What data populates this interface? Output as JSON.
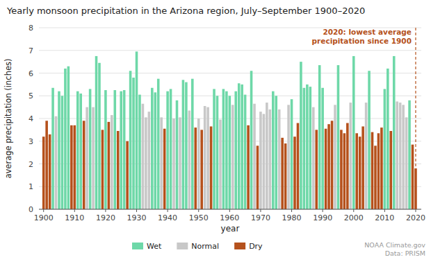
{
  "chart_data": {
    "type": "bar",
    "title": "Yearly monsoon precipitation in the Arizona region, July–September 1900–2020",
    "xlabel": "year",
    "ylabel": "average precipitation (inches)",
    "x": [
      1900,
      1901,
      1902,
      1903,
      1904,
      1905,
      1906,
      1907,
      1908,
      1909,
      1910,
      1911,
      1912,
      1913,
      1914,
      1915,
      1916,
      1917,
      1918,
      1919,
      1920,
      1921,
      1922,
      1923,
      1924,
      1925,
      1926,
      1927,
      1928,
      1929,
      1930,
      1931,
      1932,
      1933,
      1934,
      1935,
      1936,
      1937,
      1938,
      1939,
      1940,
      1941,
      1942,
      1943,
      1944,
      1945,
      1946,
      1947,
      1948,
      1949,
      1950,
      1951,
      1952,
      1953,
      1954,
      1955,
      1956,
      1957,
      1958,
      1959,
      1960,
      1961,
      1962,
      1963,
      1964,
      1965,
      1966,
      1967,
      1968,
      1969,
      1970,
      1971,
      1972,
      1973,
      1974,
      1975,
      1976,
      1977,
      1978,
      1979,
      1980,
      1981,
      1982,
      1983,
      1984,
      1985,
      1986,
      1987,
      1988,
      1989,
      1990,
      1991,
      1992,
      1993,
      1994,
      1995,
      1996,
      1997,
      1998,
      1999,
      2000,
      2001,
      2002,
      2003,
      2004,
      2005,
      2006,
      2007,
      2008,
      2009,
      2010,
      2011,
      2012,
      2013,
      2014,
      2015,
      2016,
      2017,
      2018,
      2019,
      2020
    ],
    "series": [
      {
        "name": "Wet",
        "color": "#6ed8a8",
        "values": [
          null,
          null,
          null,
          5.35,
          null,
          5.2,
          5.0,
          6.2,
          6.3,
          null,
          null,
          5.2,
          5.1,
          null,
          null,
          5.3,
          null,
          6.75,
          6.45,
          null,
          5.25,
          null,
          null,
          5.25,
          null,
          5.2,
          5.25,
          null,
          6.1,
          5.8,
          6.95,
          5.05,
          null,
          null,
          null,
          5.35,
          5.15,
          5.75,
          null,
          null,
          5.2,
          5.3,
          null,
          4.8,
          null,
          5.7,
          5.6,
          null,
          5.75,
          null,
          null,
          null,
          null,
          null,
          null,
          5.3,
          5.0,
          null,
          5.3,
          5.2,
          5.0,
          null,
          5.2,
          5.55,
          5.5,
          5.05,
          null,
          6.1,
          null,
          null,
          null,
          null,
          null,
          null,
          5.2,
          5.0,
          null,
          null,
          null,
          null,
          4.85,
          null,
          null,
          6.5,
          5.35,
          5.5,
          5.4,
          null,
          null,
          6.35,
          5.35,
          null,
          null,
          null,
          null,
          6.35,
          null,
          null,
          null,
          null,
          6.75,
          null,
          null,
          null,
          null,
          6.1,
          null,
          null,
          null,
          null,
          5.3,
          6.2,
          null,
          6.75,
          null,
          null,
          null,
          null,
          4.8,
          null,
          null
        ]
      },
      {
        "name": "Normal",
        "color": "#c8c8c8",
        "values": [
          null,
          null,
          null,
          null,
          4.1,
          null,
          null,
          null,
          null,
          null,
          null,
          null,
          null,
          null,
          4.5,
          null,
          4.5,
          null,
          null,
          null,
          null,
          null,
          4.15,
          null,
          null,
          null,
          null,
          null,
          null,
          null,
          null,
          null,
          4.65,
          4.05,
          4.3,
          null,
          null,
          null,
          4.05,
          null,
          null,
          null,
          4.0,
          null,
          4.05,
          null,
          null,
          4.35,
          null,
          null,
          4.0,
          null,
          4.55,
          4.5,
          null,
          null,
          null,
          3.95,
          null,
          null,
          null,
          4.6,
          null,
          null,
          null,
          null,
          null,
          null,
          4.65,
          null,
          4.3,
          4.2,
          4.7,
          4.4,
          null,
          null,
          4.4,
          null,
          null,
          4.6,
          null,
          null,
          null,
          null,
          null,
          null,
          null,
          4.5,
          null,
          null,
          null,
          null,
          null,
          null,
          4.6,
          null,
          null,
          null,
          null,
          4.7,
          null,
          null,
          null,
          null,
          4.7,
          null,
          null,
          null,
          null,
          null,
          null,
          null,
          null,
          null,
          4.75,
          4.7,
          4.6,
          4.05,
          null,
          null,
          null
        ]
      },
      {
        "name": "Dry",
        "color": "#b5511c",
        "values": [
          3.2,
          3.9,
          3.3,
          null,
          null,
          null,
          null,
          null,
          null,
          3.7,
          3.7,
          null,
          null,
          3.9,
          null,
          null,
          null,
          null,
          null,
          3.5,
          null,
          3.85,
          null,
          null,
          3.45,
          null,
          null,
          3.0,
          null,
          null,
          null,
          null,
          null,
          null,
          null,
          null,
          null,
          null,
          null,
          3.55,
          null,
          null,
          null,
          null,
          null,
          null,
          null,
          null,
          null,
          3.6,
          null,
          3.5,
          null,
          null,
          3.65,
          null,
          null,
          null,
          null,
          null,
          null,
          null,
          null,
          null,
          null,
          null,
          3.7,
          null,
          null,
          2.8,
          null,
          null,
          null,
          null,
          null,
          null,
          null,
          3.15,
          2.9,
          null,
          null,
          3.2,
          3.8,
          null,
          null,
          null,
          null,
          null,
          3.5,
          null,
          null,
          3.55,
          3.75,
          3.9,
          null,
          null,
          3.5,
          3.35,
          3.8,
          null,
          null,
          3.35,
          3.2,
          3.65,
          null,
          null,
          3.4,
          2.8,
          3.35,
          3.6,
          null,
          null,
          3.45,
          null,
          null,
          null,
          null,
          null,
          null,
          2.85,
          1.8
        ]
      }
    ],
    "xlim": [
      1898.5,
      2021.8
    ],
    "xticks": [
      1900,
      1910,
      1920,
      1930,
      1940,
      1950,
      1960,
      1970,
      1980,
      1990,
      2000,
      2010,
      2020
    ],
    "ylim": [
      0,
      8
    ],
    "yticks": [
      0,
      1,
      2,
      3,
      4,
      5,
      6,
      7,
      8
    ],
    "grid": true,
    "legend": "bottom",
    "annotations": [
      {
        "text": "2020:  lowest average\nprecipitation since 1900",
        "x": 2020,
        "color": "#b5511c"
      },
      {
        "text": "NOAA Climate.gov\nData: PRISM"
      }
    ]
  }
}
